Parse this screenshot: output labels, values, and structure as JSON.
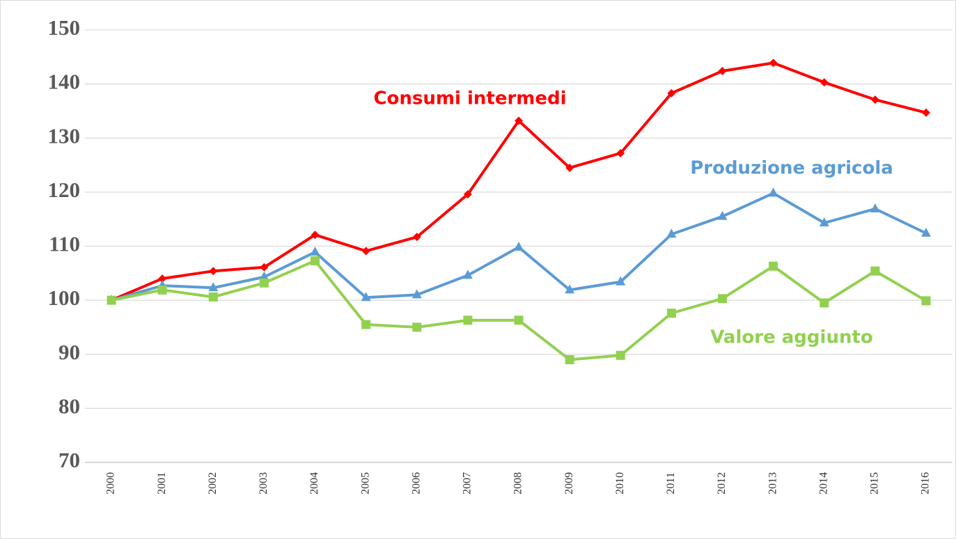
{
  "chart_data": {
    "type": "line",
    "categories": [
      "2000",
      "2001",
      "2002",
      "2003",
      "2004",
      "2005",
      "2006",
      "2007",
      "2008",
      "2009",
      "2010",
      "2011",
      "2012",
      "2013",
      "2014",
      "2015",
      "2016"
    ],
    "series": [
      {
        "name": "Consumi intermedi",
        "color": "#ff0000",
        "marker": "diamond",
        "values": [
          100,
          104,
          105.4,
          106.1,
          112.1,
          109.1,
          111.7,
          119.6,
          133.2,
          124.5,
          127.2,
          138.3,
          142.4,
          143.9,
          140.3,
          137.1,
          134.7
        ]
      },
      {
        "name": "Produzione agricola",
        "color": "#5b9bd5",
        "marker": "triangle",
        "values": [
          100,
          102.7,
          102.3,
          104.3,
          108.9,
          100.5,
          101,
          104.6,
          109.8,
          101.9,
          103.4,
          112.2,
          115.5,
          119.8,
          114.3,
          116.9,
          112.4
        ]
      },
      {
        "name": "Valore aggiunto",
        "color": "#92d050",
        "marker": "square",
        "values": [
          100,
          101.9,
          100.6,
          103.2,
          107.3,
          95.5,
          95,
          96.3,
          96.3,
          89,
          89.8,
          97.6,
          100.3,
          106.3,
          99.5,
          105.4,
          99.9
        ]
      }
    ],
    "ylim": [
      70,
      150
    ],
    "yticks": [
      70,
      80,
      90,
      100,
      110,
      120,
      130,
      140,
      150
    ],
    "grid": true
  }
}
